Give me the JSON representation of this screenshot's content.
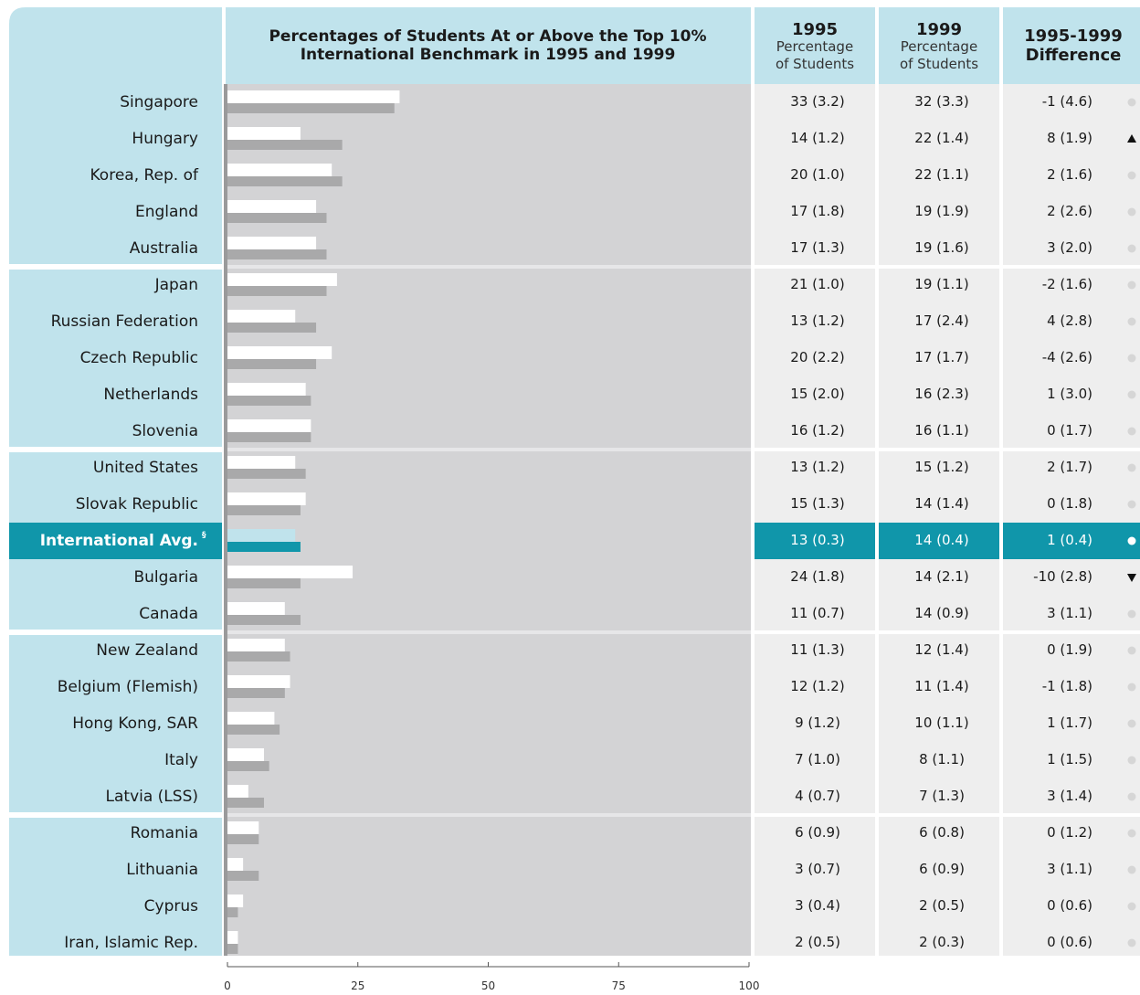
{
  "header": {
    "chart_title_line1": "Percentages of Students At or Above the Top 10%",
    "chart_title_line2": "International Benchmark in 1995 and 1999",
    "col1995": {
      "year": "1995",
      "sub1": "Percentage",
      "sub2": "of Students"
    },
    "col1999": {
      "year": "1999",
      "sub1": "Percentage",
      "sub2": "of Students"
    },
    "coldiff": {
      "line1": "1995-1999",
      "line2": "Difference"
    }
  },
  "colors": {
    "panel_blue": "#c0e3ec",
    "plot_gray": "#d3d3d5",
    "table_gray": "#eeeeee",
    "bar_1995": "#ffffff",
    "bar_1999": "#a9a9aa",
    "highlight": "#1096aa",
    "highlight_bar_1995": "#c0e3ec",
    "dot_gray": "#d6d6d6",
    "separator": "#ffffff"
  },
  "chart_data": {
    "type": "bar",
    "orientation": "horizontal",
    "title": "Percentages of Students At or Above the Top 10% International Benchmark in 1995 and 1999",
    "xlim": [
      0,
      100
    ],
    "x_ticks": [
      "0",
      "25",
      "50",
      "75",
      "100"
    ],
    "categories": [
      "Singapore",
      "Hungary",
      "Korea, Rep. of",
      "England",
      "Australia",
      "Japan",
      "Russian Federation",
      "Czech Republic",
      "Netherlands",
      "Slovenia",
      "United States",
      "Slovak Republic",
      "International Avg.",
      "Bulgaria",
      "Canada",
      "New Zealand",
      "Belgium (Flemish)",
      "Hong Kong, SAR",
      "Italy",
      "Latvia (LSS)",
      "Romania",
      "Lithuania",
      "Cyprus",
      "Iran, Islamic Rep."
    ],
    "highlight_index": 12,
    "highlight_footnote": "§",
    "group_breaks_after": [
      4,
      9,
      14,
      19
    ],
    "series": [
      {
        "name": "1995",
        "values": [
          33,
          14,
          20,
          17,
          17,
          21,
          13,
          20,
          15,
          16,
          13,
          15,
          13,
          24,
          11,
          11,
          12,
          9,
          7,
          4,
          6,
          3,
          3,
          2
        ]
      },
      {
        "name": "1999",
        "values": [
          32,
          22,
          22,
          19,
          19,
          19,
          17,
          17,
          16,
          16,
          15,
          14,
          14,
          14,
          14,
          12,
          11,
          10,
          8,
          7,
          6,
          6,
          2,
          2
        ]
      }
    ],
    "table": {
      "p1995": [
        "33  (3.2)",
        "14  (1.2)",
        "20  (1.0)",
        "17  (1.8)",
        "17  (1.3)",
        "21  (1.0)",
        "13  (1.2)",
        "20  (2.2)",
        "15  (2.0)",
        "16  (1.2)",
        "13  (1.2)",
        "15  (1.3)",
        "13  (0.3)",
        "24  (1.8)",
        "11  (0.7)",
        "11  (1.3)",
        "12  (1.2)",
        "9  (1.2)",
        "7  (1.0)",
        "4  (0.7)",
        "6  (0.9)",
        "3  (0.7)",
        "3  (0.4)",
        "2  (0.5)"
      ],
      "p1999": [
        "32  (3.3)",
        "22  (1.4)",
        "22  (1.1)",
        "19  (1.9)",
        "19  (1.6)",
        "19  (1.1)",
        "17  (2.4)",
        "17  (1.7)",
        "16  (2.3)",
        "16  (1.1)",
        "15  (1.2)",
        "14  (1.4)",
        "14  (0.4)",
        "14  (2.1)",
        "14  (0.9)",
        "12  (1.4)",
        "11  (1.4)",
        "10  (1.1)",
        "8  (1.1)",
        "7  (1.3)",
        "6  (0.8)",
        "6  (0.9)",
        "2  (0.5)",
        "2  (0.3)"
      ],
      "diff": [
        "-1  (4.6)",
        "8  (1.9)",
        "2  (1.6)",
        "2  (2.6)",
        "3  (2.0)",
        "-2  (1.6)",
        "4  (2.8)",
        "-4  (2.6)",
        "1  (3.0)",
        "0  (1.7)",
        "2  (1.7)",
        "0  (1.8)",
        "1  (0.4)",
        "-10  (2.8)",
        "3  (1.1)",
        "0  (1.9)",
        "-1  (1.8)",
        "1  (1.7)",
        "1  (1.5)",
        "3  (1.4)",
        "0  (1.2)",
        "3  (1.1)",
        "0  (0.6)",
        "0  (0.6)"
      ],
      "marker": [
        "dot",
        "up",
        "dot",
        "dot",
        "dot",
        "dot",
        "dot",
        "dot",
        "dot",
        "dot",
        "dot",
        "dot",
        "dot",
        "down",
        "dot",
        "dot",
        "dot",
        "dot",
        "dot",
        "dot",
        "dot",
        "dot",
        "dot",
        "dot"
      ]
    }
  }
}
